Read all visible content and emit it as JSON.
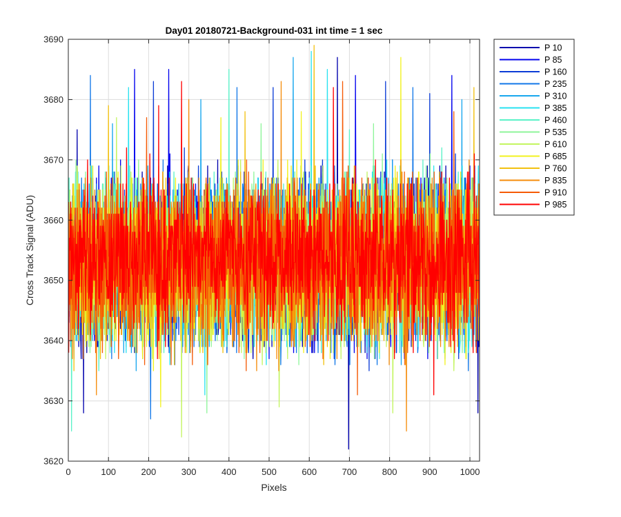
{
  "chart_data": {
    "type": "line",
    "title": "Day01 20180721-Background-031 int time = 1 sec",
    "xlabel": "Pixels",
    "ylabel": "Cross Track Signal (ADU)",
    "xlim": [
      0,
      1024
    ],
    "ylim": [
      3620,
      3690
    ],
    "x_ticks": [
      0,
      100,
      200,
      300,
      400,
      500,
      600,
      700,
      800,
      900,
      1000
    ],
    "y_ticks": [
      3620,
      3630,
      3640,
      3650,
      3660,
      3670,
      3680,
      3690
    ],
    "grid": true,
    "legend_position": "outside-top-right",
    "x_range": [
      1,
      1024
    ],
    "series": [
      {
        "name": "P 10",
        "color": "#0000ad",
        "mean": 3653,
        "sd": 8.5,
        "spikes": [
          [
            38,
            3628
          ],
          [
            698,
            3622
          ],
          [
            670,
            3687
          ],
          [
            1020,
            3628
          ],
          [
            22,
            3675
          ]
        ]
      },
      {
        "name": "P 85",
        "color": "#0000ee",
        "mean": 3653,
        "sd": 8.5,
        "spikes": [
          [
            165,
            3685
          ],
          [
            250,
            3685
          ],
          [
            715,
            3684
          ],
          [
            955,
            3684
          ]
        ]
      },
      {
        "name": "P 160",
        "color": "#0a3bd6",
        "mean": 3653,
        "sd": 8.5,
        "spikes": [
          [
            212,
            3683
          ],
          [
            510,
            3682
          ],
          [
            790,
            3683
          ],
          [
            900,
            3681
          ]
        ]
      },
      {
        "name": "P 235",
        "color": "#1177e8",
        "mean": 3653,
        "sd": 8.5,
        "spikes": [
          [
            55,
            3684
          ],
          [
            205,
            3627
          ],
          [
            420,
            3682
          ],
          [
            858,
            3682
          ]
        ]
      },
      {
        "name": "P 310",
        "color": "#18a7ee",
        "mean": 3653,
        "sd": 8.5,
        "spikes": [
          [
            110,
            3676
          ],
          [
            330,
            3680
          ],
          [
            560,
            3687
          ],
          [
            980,
            3680
          ]
        ]
      },
      {
        "name": "P 385",
        "color": "#27e2f0",
        "mean": 3653,
        "sd": 8.5,
        "spikes": [
          [
            150,
            3682
          ],
          [
            605,
            3688
          ],
          [
            645,
            3685
          ],
          [
            340,
            3631
          ]
        ]
      },
      {
        "name": "P 460",
        "color": "#5af2c8",
        "mean": 3653,
        "sd": 8.5,
        "spikes": [
          [
            8,
            3625
          ],
          [
            400,
            3685
          ],
          [
            700,
            3675
          ],
          [
            930,
            3672
          ]
        ]
      },
      {
        "name": "P 535",
        "color": "#8ef59a",
        "mean": 3653,
        "sd": 8.5,
        "spikes": [
          [
            345,
            3628
          ],
          [
            480,
            3676
          ],
          [
            760,
            3676
          ],
          [
            1010,
            3673
          ]
        ]
      },
      {
        "name": "P 610",
        "color": "#c3f560",
        "mean": 3653,
        "sd": 8.5,
        "spikes": [
          [
            282,
            3624
          ],
          [
            525,
            3629
          ],
          [
            808,
            3628
          ],
          [
            120,
            3677
          ]
        ]
      },
      {
        "name": "P 685",
        "color": "#f2f21e",
        "mean": 3653,
        "sd": 8.5,
        "spikes": [
          [
            828,
            3687
          ],
          [
            230,
            3629
          ],
          [
            580,
            3678
          ],
          [
            380,
            3677
          ]
        ]
      },
      {
        "name": "P 760",
        "color": "#f2c00f",
        "mean": 3653,
        "sd": 8.5,
        "spikes": [
          [
            612,
            3689
          ],
          [
            1010,
            3682
          ],
          [
            100,
            3679
          ],
          [
            440,
            3678
          ]
        ]
      },
      {
        "name": "P 835",
        "color": "#f58c0a",
        "mean": 3653,
        "sd": 8.5,
        "spikes": [
          [
            842,
            3625
          ],
          [
            530,
            3683
          ],
          [
            300,
            3680
          ],
          [
            70,
            3631
          ]
        ]
      },
      {
        "name": "P 910",
        "color": "#f55a05",
        "mean": 3653,
        "sd": 8.5,
        "spikes": [
          [
            683,
            3683
          ],
          [
            195,
            3677
          ],
          [
            960,
            3678
          ],
          [
            720,
            3631
          ]
        ]
      },
      {
        "name": "P 985",
        "color": "#ff0000",
        "mean": 3654,
        "sd": 8.0,
        "spikes": [
          [
            282,
            3683
          ],
          [
            660,
            3682
          ],
          [
            225,
            3679
          ],
          [
            910,
            3631
          ]
        ]
      }
    ]
  }
}
